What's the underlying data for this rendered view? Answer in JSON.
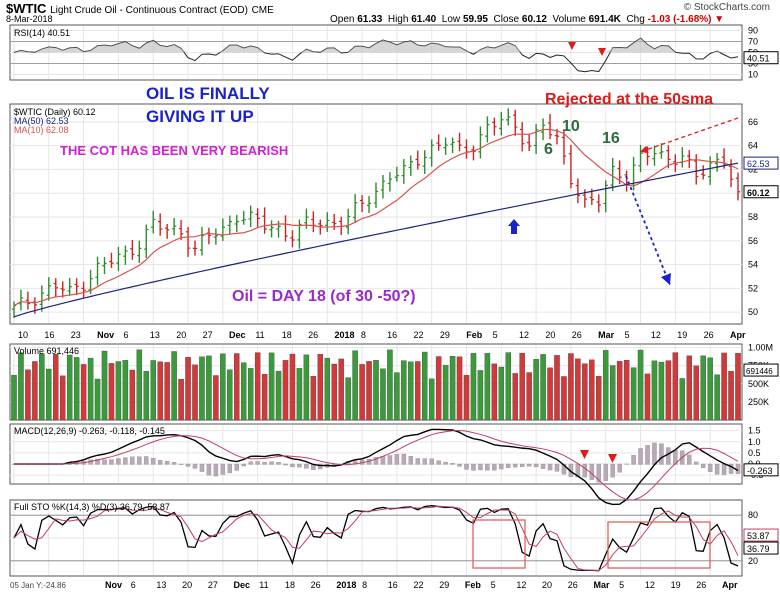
{
  "header": {
    "symbol": "$WTIC",
    "name": "Light Crude Oil - Continuous Contract (EOD)",
    "exchange": "CME",
    "date": "8-Mar-2018",
    "watermark": "© StockCharts.com",
    "open_label": "Open",
    "open": "61.33",
    "high_label": "High",
    "high": "61.40",
    "low_label": "Low",
    "low": "59.95",
    "close_label": "Close",
    "close": "60.12",
    "volume_label": "Volume",
    "volume": "691.4K",
    "chg_label": "Chg",
    "chg": "-1.03 (-1.68%)"
  },
  "annotations": {
    "a1": "OIL IS FINALLY",
    "a2": "GIVING IT UP",
    "a3": "THE COT HAS BEEN VERY BEARISH",
    "a4": "Rejected at the 50sma",
    "a5": "Oil =  DAY 18  (of 30 -50?)",
    "n6": "6",
    "n10": "10",
    "n16": "16"
  },
  "panels": {
    "rsi_label": "RSI(14) 40.51",
    "rsi_value": "40.51",
    "price_label": "$WTIC (Daily) 60.12",
    "ma50_label": "MA(50) 62.53",
    "ma10_label": "MA(10) 62.08",
    "ma50_value": "62.53",
    "close_value": "60.12",
    "volume_label": "Volume 691,446",
    "volume_value": "691446",
    "macd_label": "MACD(12,26,9) -0.263, -0.118, -0.145",
    "macd_value": "-0.263",
    "sto_label": "Full STO %K(14,3) %D(3) 36.79, 53.87",
    "sto_d_value": "53.87",
    "sto_k_value": "36.79",
    "footer_left": "05 Jan Y:-24.86"
  },
  "axes": {
    "rsi_ticks": [
      "90",
      "70",
      "50",
      "30",
      "10"
    ],
    "price_ticks": [
      "66",
      "64",
      "62",
      "60",
      "58",
      "56",
      "54",
      "52",
      "50"
    ],
    "volume_ticks": [
      "1.00M",
      "750K",
      "500K",
      "250K"
    ],
    "macd_ticks": [
      "1.5",
      "1.0",
      "0.5",
      "0.0",
      "-0.5"
    ],
    "sto_ticks": [
      "80",
      "50",
      "20"
    ],
    "x_labels_top": [
      "10",
      "16",
      "23",
      "Nov",
      "6",
      "13",
      "20",
      "27",
      "Dec",
      "11",
      "18",
      "26",
      "2018",
      "8",
      "16",
      "22",
      "29",
      "Feb",
      "5",
      "12",
      "20",
      "26",
      "Mar",
      "5",
      "12",
      "19",
      "26",
      "Apr"
    ],
    "x_labels_bottom": [
      "Nov",
      "6",
      "13",
      "20",
      "27",
      "Dec",
      "11",
      "18",
      "26",
      "2018",
      "8",
      "16",
      "22",
      "29",
      "Feb",
      "5",
      "12",
      "20",
      "26",
      "Mar",
      "5",
      "12",
      "19",
      "26",
      "Apr"
    ]
  },
  "colors": {
    "up": "#2e8b2e",
    "down": "#cc2222",
    "ma50": "#1a237e",
    "ma10": "#d9534f",
    "annot_blue": "#1a23c8",
    "annot_magenta": "#d11fd1",
    "annot_red": "#e01a1a",
    "annot_green": "#2e6b3a",
    "annot_purple": "#9a29c9"
  },
  "chart_data": {
    "type": "candlestick",
    "title": "$WTIC Light Crude Oil - Continuous Contract (EOD) CME",
    "x_start": "2017-10-10",
    "x_end": "2018-03-08",
    "ylim": [
      49,
      67.5
    ],
    "last_close": 60.12,
    "ma50_last": 62.53,
    "ma10_last": 62.08,
    "rsi_last": 40.51,
    "volume_last": 691446,
    "macd_last": [
      -0.263,
      -0.118,
      -0.145
    ],
    "sto_last": [
      36.79,
      53.87
    ],
    "close_path": [
      50.3,
      50.9,
      51.6,
      52.2,
      51.6,
      52.5,
      53.7,
      54.3,
      54.8,
      55.9,
      57.4,
      56.9,
      56.8,
      55.3,
      56.4,
      56.9,
      58.2,
      57.8,
      57.3,
      57.0,
      56.5,
      57.4,
      57.6,
      57.5,
      57.9,
      59.1,
      60.2,
      61.5,
      61.7,
      62.9,
      63.8,
      64.3,
      63.5,
      64.1,
      65.5,
      66.1,
      65.6,
      64.1,
      65.7,
      64.4,
      61.4,
      59.1,
      59.2,
      61.9,
      61.5,
      62.8,
      63.5,
      62.9,
      63.2,
      61.2,
      62.5,
      62.9,
      60.1
    ]
  }
}
